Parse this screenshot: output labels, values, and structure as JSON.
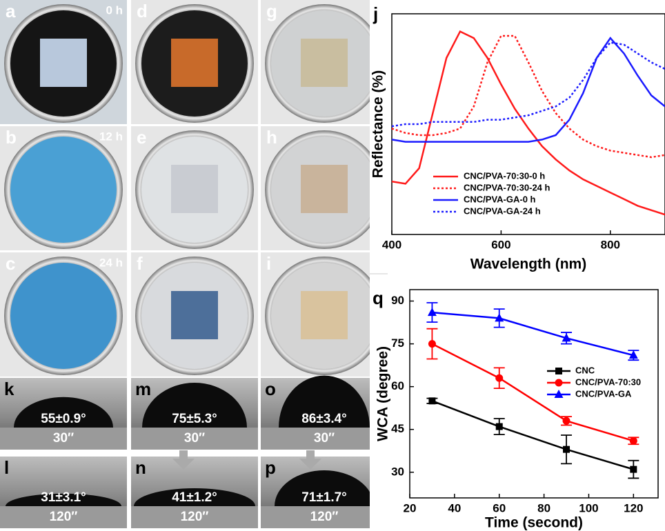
{
  "photos": [
    {
      "label": "a",
      "time": "0 h",
      "inner": "#151515",
      "film": "#b8c8dc"
    },
    {
      "label": "b",
      "time": "12 h",
      "inner": "#4aa0d4"
    },
    {
      "label": "c",
      "time": "24 h",
      "inner": "#3f93cc"
    },
    {
      "label": "d",
      "inner": "#1c1c1c",
      "film": "#c86a2a"
    },
    {
      "label": "e",
      "inner": "#dfe2e4",
      "film": "#c9ccd2"
    },
    {
      "label": "f",
      "inner": "#d8dadd",
      "film": "#4d6f9a"
    },
    {
      "label": "g",
      "inner": "#cfd1d2",
      "film": "#c9bea0"
    },
    {
      "label": "h",
      "inner": "#d2d3d4",
      "film": "#c9b49c"
    },
    {
      "label": "i",
      "inner": "#d4d4d4",
      "film": "#d9c39e"
    }
  ],
  "drops": [
    {
      "label": "k",
      "angle": "55±0.9°",
      "time": "30″"
    },
    {
      "label": "l",
      "angle": "31±3.1°",
      "time": "120″"
    },
    {
      "label": "m",
      "angle": "75±5.3°",
      "time": "30″"
    },
    {
      "label": "n",
      "angle": "41±1.2°",
      "time": "120″"
    },
    {
      "label": "o",
      "angle": "86±3.4°",
      "time": "30″"
    },
    {
      "label": "p",
      "angle": "71±1.7°",
      "time": "120″"
    }
  ],
  "chart_data": [
    {
      "type": "line",
      "label": "j",
      "xlabel": "Wavelength (nm)",
      "ylabel": "Reflectance (%)",
      "x": [
        400,
        425,
        450,
        475,
        500,
        525,
        550,
        575,
        600,
        625,
        650,
        675,
        700,
        725,
        750,
        775,
        800,
        825,
        850,
        875,
        900
      ],
      "xlim": [
        400,
        900
      ],
      "xticks": [
        400,
        600,
        800
      ],
      "ylim": [
        0,
        100
      ],
      "series": [
        {
          "name": "CNC/PVA-70:30-0 h",
          "color": "#ff1a1a",
          "linestyle": "solid",
          "values": [
            24,
            23,
            30,
            55,
            80,
            92,
            89,
            80,
            68,
            57,
            48,
            40,
            34,
            29,
            25,
            22,
            19,
            16,
            13,
            11,
            9
          ]
        },
        {
          "name": "CNC/PVA-70:30-24 h",
          "color": "#ff1a1a",
          "linestyle": "dotted",
          "values": [
            48,
            46,
            45,
            45,
            46,
            48,
            58,
            78,
            90,
            90,
            78,
            65,
            55,
            48,
            43,
            40,
            38,
            37,
            36,
            35,
            36
          ]
        },
        {
          "name": "CNC/PVA-GA-0 h",
          "color": "#1a1aff",
          "linestyle": "solid",
          "values": [
            43,
            42,
            42,
            42,
            42,
            42,
            42,
            42,
            42,
            42,
            42,
            43,
            45,
            52,
            64,
            80,
            89,
            82,
            72,
            63,
            58
          ]
        },
        {
          "name": "CNC/PVA-GA-24 h",
          "color": "#1a1aff",
          "linestyle": "dotted",
          "values": [
            49,
            50,
            50,
            51,
            51,
            51,
            51,
            52,
            52,
            53,
            54,
            56,
            58,
            62,
            70,
            80,
            87,
            86,
            82,
            78,
            75
          ]
        }
      ]
    },
    {
      "type": "errorline",
      "label": "q",
      "xlabel": "Time (second)",
      "ylabel": "WCA (degree)",
      "x": [
        30,
        60,
        90,
        120
      ],
      "xlim": [
        20,
        131
      ],
      "xticks": [
        20,
        40,
        60,
        80,
        100,
        120
      ],
      "ylim": [
        21,
        94
      ],
      "yticks": [
        30,
        45,
        60,
        75,
        90
      ],
      "series": [
        {
          "name": "CNC",
          "color": "#000000",
          "marker": "square",
          "values": [
            55,
            46,
            38,
            31
          ],
          "errors": [
            0.9,
            2.8,
            5,
            3.1
          ]
        },
        {
          "name": "CNC/PVA-70:30",
          "color": "#ff0000",
          "marker": "circle",
          "values": [
            75,
            63,
            48,
            41
          ],
          "errors": [
            5.3,
            3.6,
            1.5,
            1.2
          ]
        },
        {
          "name": "CNC/PVA-GA",
          "color": "#0000ff",
          "marker": "triangle",
          "values": [
            86,
            84,
            77,
            71
          ],
          "errors": [
            3.4,
            3.2,
            2,
            1.7
          ]
        }
      ]
    }
  ]
}
